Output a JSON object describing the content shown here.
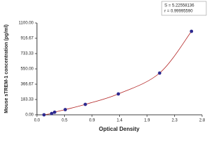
{
  "chart_data": {
    "type": "scatter",
    "x_label": "Optical Density",
    "y_label": "Mouse sTREM-1 concentration (pg/ml)",
    "annotations": [
      "S = 5.22558136",
      "r = 0.99995590"
    ],
    "series": [
      {
        "color": "#2e2a8f",
        "line_color": "#b22222",
        "x": [
          0.12,
          0.25,
          0.3,
          0.48,
          0.82,
          1.38,
          2.08,
          2.62
        ],
        "values": [
          0,
          15.6,
          31.25,
          62.5,
          125,
          250,
          500,
          1000
        ]
      }
    ],
    "xlim": [
      0,
      2.8
    ],
    "xticks": [
      {
        "value": 0,
        "label": "0.0"
      },
      {
        "value": 0.4667,
        "label": "0.5"
      },
      {
        "value": 0.9333,
        "label": "0.9"
      },
      {
        "value": 1.4,
        "label": "1.4"
      },
      {
        "value": 1.8667,
        "label": "1.9"
      },
      {
        "value": 2.3333,
        "label": "2.3"
      },
      {
        "value": 2.8,
        "label": "2.8"
      }
    ],
    "ylim": [
      0,
      1100
    ],
    "yticks": [
      {
        "value": 0,
        "label": "0.00"
      },
      {
        "value": 183.33,
        "label": "183.33"
      },
      {
        "value": 366.67,
        "label": "366.67"
      },
      {
        "value": 550,
        "label": "550.00"
      },
      {
        "value": 733.33,
        "label": "733.33"
      },
      {
        "value": 916.67,
        "label": "916.67"
      },
      {
        "value": 1100,
        "label": "1100.00"
      }
    ]
  }
}
